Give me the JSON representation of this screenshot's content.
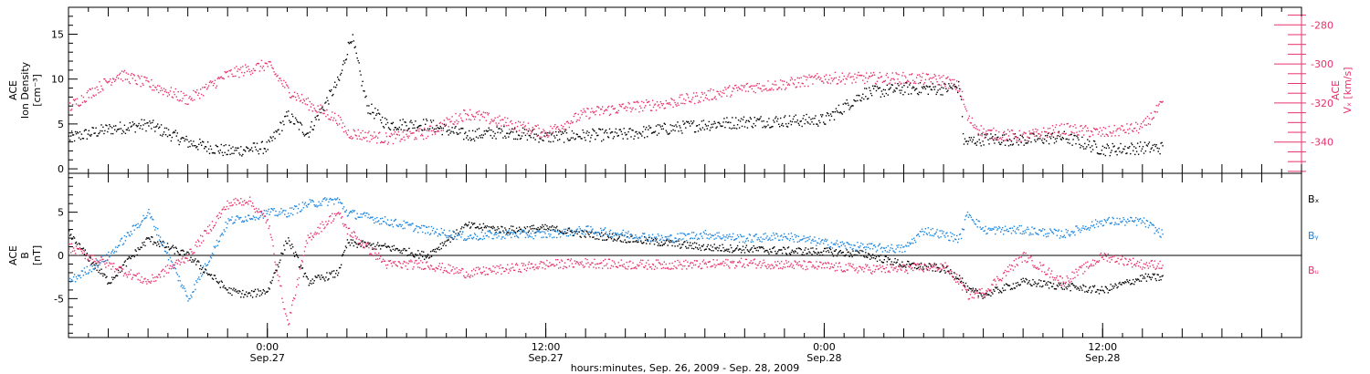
{
  "colors": {
    "black": "#000000",
    "pink": "#e8336b",
    "blue": "#1a85e0",
    "frame": "#000000"
  },
  "x_axis": {
    "label": "hours:minutes, Sep. 26, 2009 - Sep. 28, 2009",
    "range_hours": [
      -10,
      52
    ],
    "ticks": [
      {
        "hours": 0,
        "time": "0:00",
        "date": "Sep.27"
      },
      {
        "hours": 14,
        "time": "12:00",
        "date": "Sep.27"
      },
      {
        "hours": 28,
        "time": "0:00",
        "date": "Sep.28"
      },
      {
        "hours": 42,
        "time": "12:00",
        "date": "Sep.28"
      }
    ]
  },
  "chart_data": [
    {
      "type": "scatter",
      "panel": "top",
      "left_axis": {
        "label_lines": [
          "ACE",
          "Ion Density",
          "[cm⁻³]"
        ],
        "ylim": [
          -0.5,
          18
        ],
        "ticks": [
          0,
          5,
          10,
          15
        ]
      },
      "right_axis": {
        "label_lines": [
          "ACE",
          "Vₓ [km/s]"
        ],
        "ylim": [
          -356,
          -271
        ],
        "ticks": [
          -280,
          -300,
          -320,
          -340
        ]
      },
      "series": [
        {
          "key": "density",
          "color": "#000000",
          "axis": "left",
          "x_hours": [
            -10,
            -8,
            -6,
            -4,
            -2,
            0,
            1,
            2,
            3.6,
            4.2,
            5,
            6,
            8,
            10,
            12,
            14,
            16,
            18,
            20,
            22,
            24,
            26,
            28,
            29,
            30,
            32,
            34,
            34.8,
            35,
            36,
            38,
            40,
            42,
            44,
            45
          ],
          "y": [
            3.5,
            4.5,
            5,
            3,
            2,
            2.5,
            6,
            4,
            10,
            15,
            7,
            5,
            5,
            3.8,
            4.2,
            3.6,
            3.8,
            3.9,
            4.5,
            5,
            5.3,
            5.4,
            5.5,
            7,
            8.5,
            9,
            9,
            9.2,
            3,
            3.4,
            3.3,
            3.6,
            2.2,
            2.4,
            2.4
          ]
        },
        {
          "key": "vx",
          "color": "#e8336b",
          "axis": "right",
          "x_hours": [
            -10,
            -8.7,
            -7.5,
            -6,
            -4,
            -2,
            0,
            1,
            2,
            3.5,
            4,
            6,
            8,
            10,
            12,
            14,
            16,
            18,
            20,
            22,
            24,
            26,
            28,
            30,
            32,
            34,
            34.8,
            35.2,
            36,
            38,
            40,
            42,
            44,
            45
          ],
          "y": [
            -322,
            -313,
            -305,
            -310,
            -318,
            -305,
            -300,
            -313,
            -320,
            -328,
            -335,
            -338,
            -335,
            -325,
            -330,
            -335,
            -325,
            -322,
            -320,
            -316,
            -312,
            -310,
            -307,
            -307,
            -307,
            -308,
            -312,
            -328,
            -335,
            -337,
            -333,
            -335,
            -332,
            -320
          ]
        }
      ]
    },
    {
      "type": "scatter",
      "panel": "bottom",
      "left_axis": {
        "label_lines": [
          "ACE",
          "B",
          "[nT]"
        ],
        "ylim": [
          -9.5,
          9.5
        ],
        "ticks": [
          -5,
          0,
          5
        ]
      },
      "series": [
        {
          "name": "Bₓ",
          "color": "#000000",
          "x_hours": [
            -10,
            -8,
            -6,
            -4,
            -2,
            -1,
            0,
            1,
            2,
            3.5,
            4,
            6,
            8,
            10,
            12,
            14,
            16,
            18,
            20,
            22,
            24,
            26,
            28,
            30,
            32,
            34,
            34.8,
            35.2,
            36,
            38,
            40,
            42,
            44,
            45
          ],
          "y": [
            2.5,
            -3,
            2,
            0,
            -4,
            -4.5,
            -4,
            2,
            -3,
            -2,
            1.5,
            1,
            0,
            3.5,
            3,
            3.2,
            2.5,
            2,
            1.5,
            1,
            0.8,
            0.6,
            0.5,
            0.2,
            -1,
            -1.5,
            -2.5,
            -4,
            -4.5,
            -3,
            -3.5,
            -4,
            -2.5,
            -2.5
          ]
        },
        {
          "name": "Bᵧ",
          "color": "#1a85e0",
          "x_hours": [
            -10,
            -8,
            -6,
            -4,
            -2,
            0,
            1,
            2,
            3.5,
            4,
            6,
            8,
            10,
            12,
            14,
            16,
            18,
            20,
            22,
            24,
            26,
            28,
            30,
            32,
            33,
            34.8,
            35.2,
            36,
            38,
            40,
            42,
            44,
            45
          ],
          "y": [
            -3,
            0,
            5,
            -5,
            4,
            5,
            5,
            6,
            6.5,
            5,
            4,
            3,
            2.2,
            2.5,
            2.5,
            3,
            2.5,
            2,
            2.5,
            2,
            2.3,
            1.5,
            1,
            0.8,
            3,
            2,
            5,
            3,
            3,
            2.5,
            4,
            4,
            2.5
          ]
        },
        {
          "name": "Bᵤ",
          "color": "#e8336b",
          "x_hours": [
            -10,
            -8,
            -6,
            -4,
            -2,
            -1,
            0,
            1,
            2,
            3.5,
            4,
            6,
            8,
            10,
            12,
            14,
            16,
            18,
            20,
            22,
            24,
            26,
            28,
            30,
            32,
            34,
            34.8,
            35.2,
            36,
            38,
            40,
            42,
            44,
            45
          ],
          "y": [
            1,
            -1,
            -3,
            0,
            6,
            6.5,
            4,
            -8,
            2,
            5,
            3,
            -1,
            -1,
            -2,
            -1.5,
            -1,
            -0.8,
            -1,
            -1,
            -1,
            -0.8,
            -1,
            -1.2,
            -1.5,
            -1.5,
            -1.2,
            -3,
            -4.5,
            -4.2,
            0,
            -3,
            0,
            -1,
            -1
          ]
        }
      ]
    }
  ]
}
